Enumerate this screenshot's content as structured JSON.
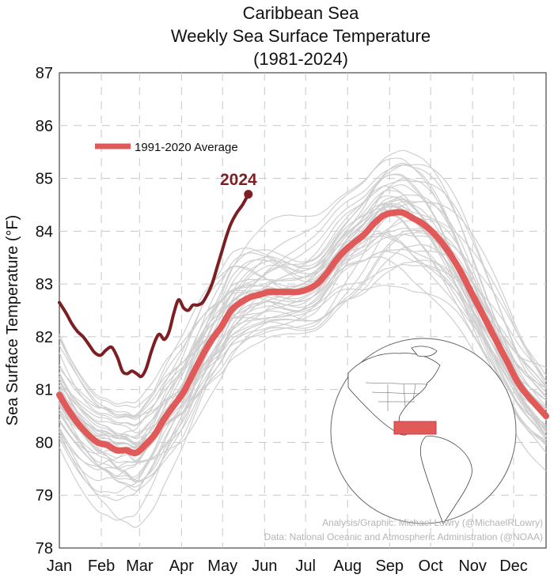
{
  "chart_data": {
    "type": "line",
    "title": [
      "Caribbean Sea",
      "Weekly Sea Surface Temperature",
      "(1981-2024)"
    ],
    "ylabel": "Sea Surface Temperature (°F)",
    "xlabel": "",
    "ylim": [
      78,
      87
    ],
    "yticks": [
      78,
      79,
      80,
      81,
      82,
      83,
      84,
      85,
      86,
      87
    ],
    "x_unit": "week of year",
    "xlim": [
      1,
      52
    ],
    "month_ticks": [
      {
        "label": "Jan",
        "week": 1
      },
      {
        "label": "Feb",
        "week": 5.4
      },
      {
        "label": "Mar",
        "week": 9.4
      },
      {
        "label": "Apr",
        "week": 13.8
      },
      {
        "label": "May",
        "week": 18.1
      },
      {
        "label": "Jun",
        "week": 22.5
      },
      {
        "label": "Jul",
        "week": 26.8
      },
      {
        "label": "Aug",
        "week": 31.2
      },
      {
        "label": "Sep",
        "week": 35.6
      },
      {
        "label": "Oct",
        "week": 39.9
      },
      {
        "label": "Nov",
        "week": 44.3
      },
      {
        "label": "Dec",
        "week": 48.6
      }
    ],
    "grid": true,
    "legend_position": "top-left",
    "series": [
      {
        "name": "1991-2020 Average",
        "color": "#e05a5a",
        "x": [
          1,
          2,
          3,
          4,
          5,
          6,
          7,
          8,
          9,
          10,
          11,
          12,
          13,
          14,
          15,
          16,
          17,
          18,
          19,
          20,
          21,
          22,
          23,
          24,
          25,
          26,
          27,
          28,
          29,
          30,
          31,
          32,
          33,
          34,
          35,
          36,
          37,
          38,
          39,
          40,
          41,
          42,
          43,
          44,
          45,
          46,
          47,
          48,
          49,
          50,
          51,
          52
        ],
        "values": [
          80.9,
          80.6,
          80.35,
          80.15,
          80.0,
          79.95,
          79.85,
          79.85,
          79.8,
          79.95,
          80.15,
          80.45,
          80.7,
          80.95,
          81.3,
          81.65,
          81.95,
          82.2,
          82.5,
          82.65,
          82.75,
          82.8,
          82.85,
          82.85,
          82.85,
          82.85,
          82.9,
          83.0,
          83.2,
          83.45,
          83.65,
          83.8,
          83.95,
          84.15,
          84.3,
          84.35,
          84.35,
          84.25,
          84.15,
          84.0,
          83.8,
          83.55,
          83.25,
          82.9,
          82.55,
          82.2,
          81.85,
          81.5,
          81.15,
          80.9,
          80.7,
          80.5
        ]
      },
      {
        "name": "2024",
        "color": "#7d1f22",
        "x": [
          1,
          1.7,
          2.3,
          2.9,
          3.5,
          4.1,
          4.7,
          5.3,
          5.9,
          6.5,
          7.1,
          7.6,
          8.1,
          8.6,
          9.1,
          9.6,
          10.1,
          10.6,
          11.1,
          11.5,
          12.0,
          12.5,
          13.0,
          13.5,
          14.0,
          14.5,
          15.0,
          15.5,
          16.0,
          16.5,
          17.0,
          17.5,
          18.0,
          18.5,
          19.0,
          19.6,
          20.2,
          20.8
        ],
        "values": [
          82.65,
          82.45,
          82.25,
          82.1,
          82.0,
          81.85,
          81.7,
          81.65,
          81.75,
          81.8,
          81.6,
          81.35,
          81.3,
          81.35,
          81.3,
          81.25,
          81.4,
          81.7,
          81.95,
          82.05,
          81.95,
          82.1,
          82.45,
          82.7,
          82.55,
          82.5,
          82.6,
          82.6,
          82.65,
          82.8,
          83.0,
          83.3,
          83.6,
          83.9,
          84.15,
          84.35,
          84.5,
          84.7
        ]
      }
    ],
    "series_2024_label": "2024",
    "historical_years_note": "Gray lines show individual years 1981-2023",
    "inset": "Globe map with Caribbean Sea region highlighted in red"
  },
  "credits": {
    "line1": "Analysis/Graphic: Michael Lowry (@MichaelRLowry)",
    "line2": "Data: National Oceanic and Atmospheric Administration (@NOAA)"
  },
  "colors": {
    "average": "#e05a5a",
    "year2024": "#7d1f22",
    "historical": "#cfcfcf",
    "grid": "#c8c8c8"
  }
}
